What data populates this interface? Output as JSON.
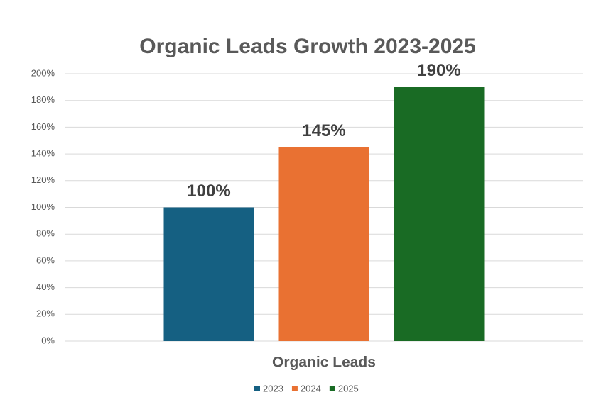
{
  "chart_data": {
    "type": "bar",
    "title": "Organic Leads Growth 2023-2025",
    "categories": [
      "Organic Leads"
    ],
    "series": [
      {
        "name": "2023",
        "color": "#156082",
        "values": [
          100
        ],
        "value_labels": [
          "100%"
        ]
      },
      {
        "name": "2024",
        "color": "#e97132",
        "values": [
          145
        ],
        "value_labels": [
          "145%"
        ]
      },
      {
        "name": "2025",
        "color": "#196b24",
        "values": [
          190
        ],
        "value_labels": [
          "190%"
        ]
      }
    ],
    "ylim": [
      0,
      200
    ],
    "yticks": [
      {
        "value": 0,
        "label": "0%"
      },
      {
        "value": 20,
        "label": "20%"
      },
      {
        "value": 40,
        "label": "40%"
      },
      {
        "value": 60,
        "label": "60%"
      },
      {
        "value": 80,
        "label": "80%"
      },
      {
        "value": 100,
        "label": "100%"
      },
      {
        "value": 120,
        "label": "120%"
      },
      {
        "value": 140,
        "label": "140%"
      },
      {
        "value": 160,
        "label": "160%"
      },
      {
        "value": 180,
        "label": "180%"
      },
      {
        "value": 200,
        "label": "200%"
      }
    ],
    "grid": true,
    "legend": "bottom"
  }
}
